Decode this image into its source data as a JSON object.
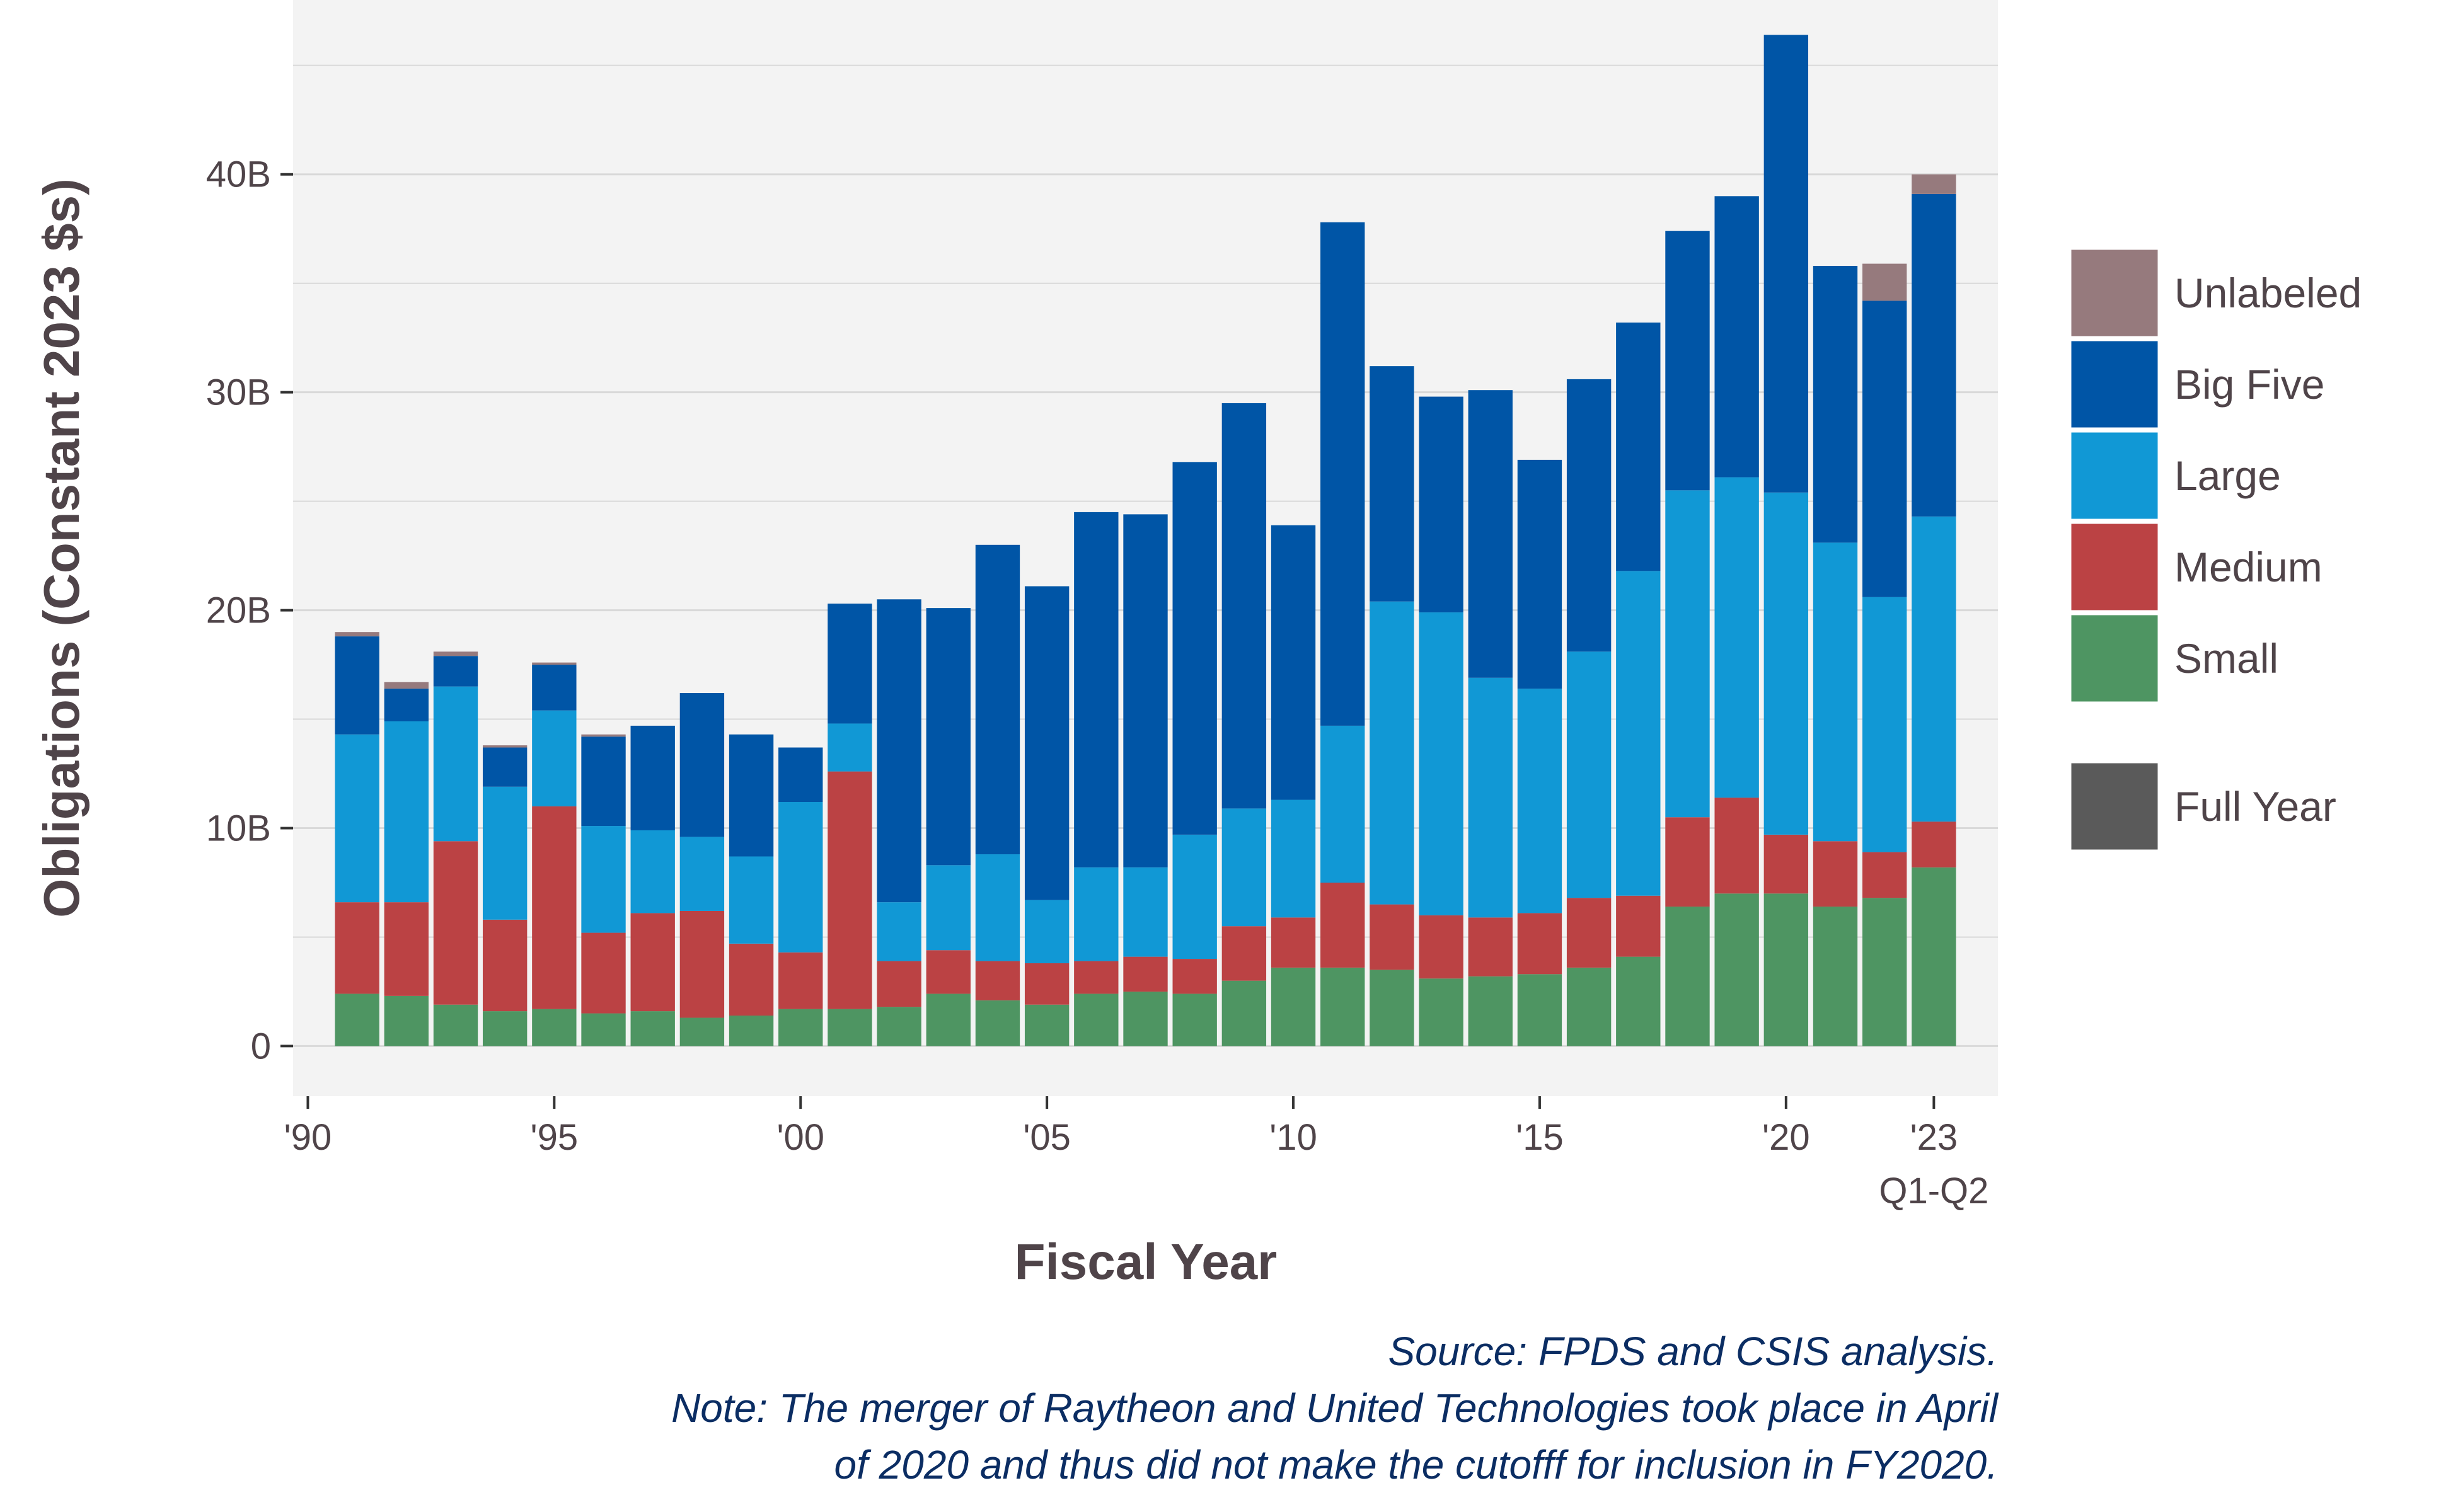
{
  "chart_data": {
    "type": "bar",
    "stacked": true,
    "xlabel": "Fiscal Year",
    "ylabel": "Obligations (Constant 2023 $s)",
    "ylim": [
      -2.3,
      48
    ],
    "y_ticks": [
      {
        "value": 0,
        "label": "0"
      },
      {
        "value": 10,
        "label": "10B"
      },
      {
        "value": 20,
        "label": "20B"
      },
      {
        "value": 30,
        "label": "30B"
      },
      {
        "value": 40,
        "label": "40B"
      }
    ],
    "y_minor_ticks": [
      5,
      15,
      25,
      35,
      45
    ],
    "xlim": [
      1989.7,
      2024.3
    ],
    "x_ticks": [
      {
        "value": 1990,
        "label": "'90"
      },
      {
        "value": 1995,
        "label": "'95"
      },
      {
        "value": 2000,
        "label": "'00"
      },
      {
        "value": 2005,
        "label": "'05"
      },
      {
        "value": 2010,
        "label": "'10"
      },
      {
        "value": 2015,
        "label": "'15"
      },
      {
        "value": 2020,
        "label": "'20"
      },
      {
        "value": 2023,
        "label": "'23"
      }
    ],
    "x_sub_label": "Q1-Q2",
    "x": [
      1991,
      1992,
      1993,
      1994,
      1995,
      1996,
      1997,
      1998,
      1999,
      2000,
      2001,
      2002,
      2003,
      2004,
      2005,
      2006,
      2007,
      2008,
      2009,
      2010,
      2011,
      2012,
      2013,
      2014,
      2015,
      2016,
      2017,
      2018,
      2019,
      2020,
      2021,
      2022,
      2023
    ],
    "series": [
      {
        "name": "Small",
        "color": "#4e9562",
        "values": [
          2.4,
          2.3,
          1.9,
          1.6,
          1.7,
          1.5,
          1.6,
          1.3,
          1.4,
          1.7,
          1.7,
          1.8,
          2.4,
          2.1,
          1.9,
          2.4,
          2.5,
          2.4,
          3.0,
          3.6,
          3.6,
          3.5,
          3.1,
          3.2,
          3.3,
          3.6,
          4.1,
          6.4,
          7.0,
          7.0,
          6.4,
          6.8,
          8.2
        ]
      },
      {
        "name": "Medium",
        "color": "#bb4244",
        "values": [
          4.2,
          4.3,
          7.5,
          4.2,
          9.3,
          3.7,
          4.5,
          4.9,
          3.3,
          2.6,
          10.9,
          2.1,
          2.0,
          1.8,
          1.9,
          1.5,
          1.6,
          1.6,
          2.5,
          2.3,
          3.9,
          3.0,
          2.9,
          2.7,
          2.8,
          3.2,
          2.8,
          4.1,
          4.4,
          2.7,
          3.0,
          2.1,
          2.1
        ]
      },
      {
        "name": "Large",
        "color": "#1198d5",
        "values": [
          7.7,
          8.3,
          7.1,
          6.1,
          4.4,
          4.9,
          3.8,
          3.4,
          4.0,
          6.9,
          2.2,
          2.7,
          3.9,
          4.9,
          2.9,
          4.3,
          4.1,
          5.7,
          5.4,
          5.4,
          7.2,
          13.9,
          13.9,
          11.0,
          10.3,
          11.3,
          14.9,
          15.0,
          14.7,
          15.7,
          13.7,
          11.7,
          14.0
        ]
      },
      {
        "name": "Big Five",
        "color": "#0055a6",
        "values": [
          4.5,
          1.5,
          1.4,
          1.8,
          2.1,
          4.1,
          4.8,
          6.6,
          5.6,
          2.5,
          5.5,
          13.9,
          11.8,
          14.2,
          14.4,
          16.3,
          16.2,
          17.1,
          18.6,
          12.6,
          23.1,
          10.8,
          9.9,
          13.2,
          10.5,
          12.5,
          11.4,
          11.9,
          12.9,
          21.0,
          12.7,
          13.6,
          14.8
        ]
      },
      {
        "name": "Unlabeled",
        "color": "#967a7d",
        "values": [
          0.2,
          0.3,
          0.2,
          0.1,
          0.1,
          0.1,
          0,
          0,
          0,
          0,
          0,
          0,
          0,
          0,
          0,
          0,
          0,
          0,
          0,
          0,
          0,
          0,
          0,
          0,
          0,
          0,
          0,
          0,
          0,
          0,
          0,
          1.7,
          0.9
        ]
      }
    ],
    "legend": {
      "position": "right",
      "items": [
        {
          "label": "Unlabeled",
          "color": "#967a7d"
        },
        {
          "label": "Big Five",
          "color": "#0055a6"
        },
        {
          "label": "Large",
          "color": "#1198d5"
        },
        {
          "label": "Medium",
          "color": "#bb4244"
        },
        {
          "label": "Small",
          "color": "#4e9562"
        }
      ],
      "extra_item": {
        "label": "Full Year",
        "color": "#5a5a5a"
      }
    },
    "grid": true,
    "panel_color": "#f3f3f3",
    "grid_color": "#d9d9d9",
    "note_lines": [
      "Source: FPDS and CSIS analysis.",
      "Note: The merger of Raytheon and United Technologies took place in April",
      "of 2020 and thus did not make the cutofff for inclusion in FY2020."
    ]
  }
}
